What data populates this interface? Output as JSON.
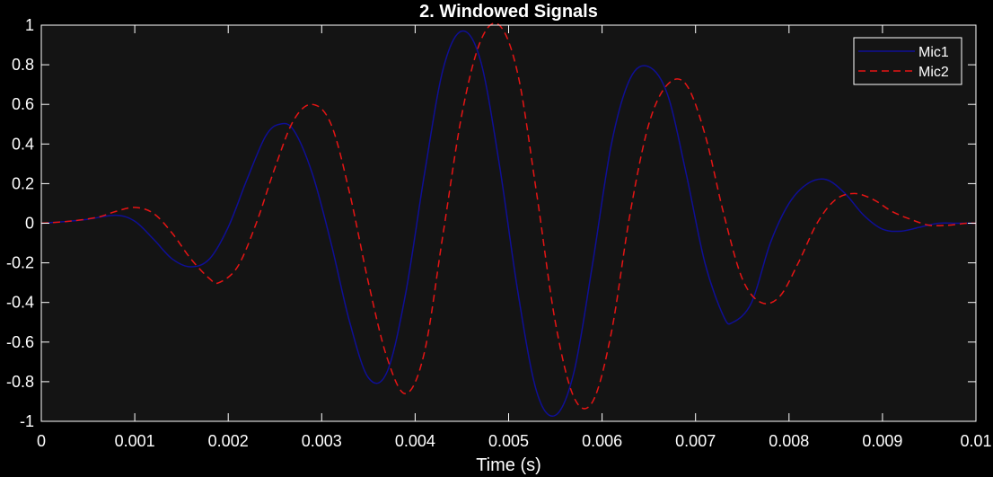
{
  "chart_data": {
    "type": "line",
    "title": "2. Windowed Signals",
    "xlabel": "Time (s)",
    "ylabel": "",
    "xlim": [
      0,
      0.01
    ],
    "ylim": [
      -1,
      1
    ],
    "xticks": [
      0,
      0.001,
      0.002,
      0.003,
      0.004,
      0.005,
      0.006,
      0.007,
      0.008,
      0.009,
      0.01
    ],
    "xtick_labels": [
      "0",
      "0.001",
      "0.002",
      "0.003",
      "0.004",
      "0.005",
      "0.006",
      "0.007",
      "0.008",
      "0.009",
      "0.01"
    ],
    "yticks": [
      -1,
      -0.8,
      -0.6,
      -0.4,
      -0.2,
      0,
      0.2,
      0.4,
      0.6,
      0.8,
      1
    ],
    "ytick_labels": [
      "-1",
      "-0.8",
      "-0.6",
      "-0.4",
      "-0.2",
      "0",
      "0.2",
      "0.4",
      "0.6",
      "0.8",
      "1"
    ],
    "grid": false,
    "legend_position": "top-right",
    "background_color": "#000000",
    "axes_color": "#141414",
    "axis_line_color": "#ffffff",
    "series": [
      {
        "name": "Mic1",
        "color": "#0f0f96",
        "line_style": "solid",
        "x": [
          0,
          0.0003,
          0.0005,
          0.0008,
          0.001,
          0.0012,
          0.0014,
          0.0016,
          0.0018,
          0.002,
          0.0022,
          0.0024,
          0.00255,
          0.0027,
          0.0029,
          0.0031,
          0.0033,
          0.0035,
          0.0037,
          0.0039,
          0.0041,
          0.0043,
          0.0045,
          0.0047,
          0.0049,
          0.0051,
          0.0053,
          0.0055,
          0.0057,
          0.0059,
          0.0061,
          0.0063,
          0.0065,
          0.0067,
          0.0069,
          0.0071,
          0.0073,
          0.0074,
          0.0076,
          0.0078,
          0.008,
          0.0082,
          0.0084,
          0.0086,
          0.0088,
          0.009,
          0.0092,
          0.0094,
          0.0096,
          0.0098,
          0.01
        ],
        "y": [
          0,
          0.01,
          0.02,
          0.04,
          0.01,
          -0.08,
          -0.18,
          -0.22,
          -0.18,
          -0.02,
          0.22,
          0.44,
          0.5,
          0.47,
          0.25,
          -0.1,
          -0.5,
          -0.78,
          -0.75,
          -0.35,
          0.25,
          0.78,
          0.97,
          0.82,
          0.3,
          -0.35,
          -0.85,
          -0.97,
          -0.75,
          -0.2,
          0.4,
          0.73,
          0.79,
          0.65,
          0.25,
          -0.2,
          -0.47,
          -0.5,
          -0.4,
          -0.1,
          0.1,
          0.2,
          0.22,
          0.15,
          0.04,
          -0.03,
          -0.04,
          -0.02,
          0,
          0,
          0
        ]
      },
      {
        "name": "Mic2",
        "color": "#e61414",
        "line_style": "dashed",
        "x": [
          0,
          0.0003,
          0.0006,
          0.0008,
          0.001,
          0.0012,
          0.0014,
          0.0016,
          0.0018,
          0.0019,
          0.0021,
          0.0023,
          0.0025,
          0.0027,
          0.0029,
          0.0031,
          0.0033,
          0.0035,
          0.0037,
          0.0039,
          0.0041,
          0.0043,
          0.0045,
          0.0047,
          0.0049,
          0.0051,
          0.0053,
          0.0055,
          0.0057,
          0.0059,
          0.0061,
          0.0063,
          0.0065,
          0.0067,
          0.0069,
          0.0071,
          0.0073,
          0.0075,
          0.0077,
          0.0079,
          0.0081,
          0.0083,
          0.0085,
          0.0087,
          0.0089,
          0.0091,
          0.0093,
          0.0095,
          0.0097,
          0.0099,
          0.01
        ],
        "y": [
          0,
          0.01,
          0.03,
          0.06,
          0.08,
          0.05,
          -0.05,
          -0.18,
          -0.28,
          -0.3,
          -0.22,
          0,
          0.28,
          0.52,
          0.6,
          0.5,
          0.15,
          -0.3,
          -0.68,
          -0.86,
          -0.65,
          -0.05,
          0.55,
          0.92,
          1.0,
          0.75,
          0.15,
          -0.5,
          -0.88,
          -0.9,
          -0.55,
          0.05,
          0.5,
          0.7,
          0.7,
          0.45,
          0.05,
          -0.28,
          -0.4,
          -0.37,
          -0.2,
          0,
          0.12,
          0.15,
          0.12,
          0.06,
          0.02,
          -0.01,
          -0.01,
          0,
          0
        ]
      }
    ]
  }
}
